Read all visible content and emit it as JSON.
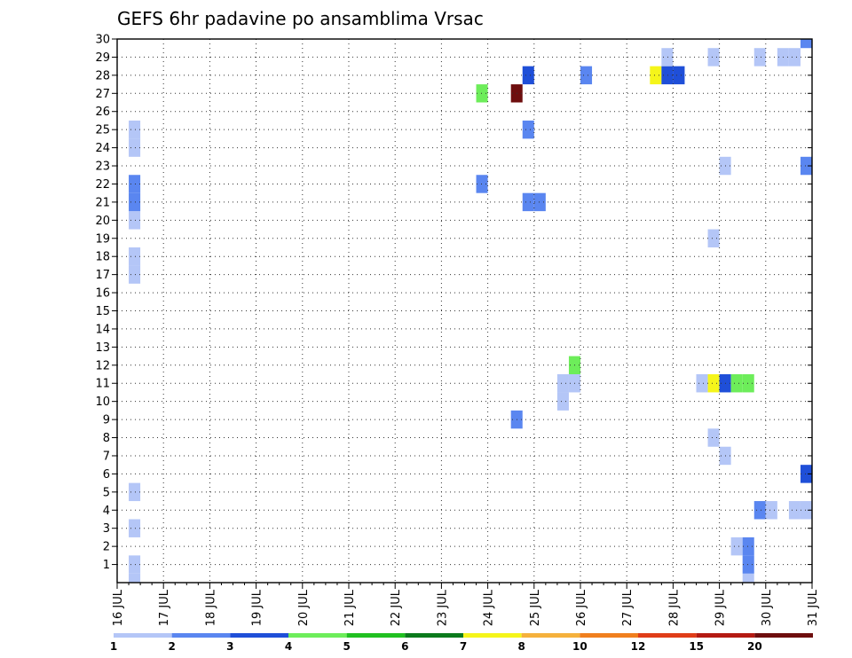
{
  "chart_data": {
    "type": "heatmap",
    "title": "GEFS 6hr padavine po ansamblima Vrsac",
    "y_ticks": [
      "1",
      "2",
      "3",
      "4",
      "5",
      "6",
      "7",
      "8",
      "9",
      "10",
      "11",
      "12",
      "13",
      "14",
      "15",
      "16",
      "17",
      "18",
      "19",
      "20",
      "21",
      "22",
      "23",
      "24",
      "25",
      "26",
      "27",
      "28",
      "29",
      "30"
    ],
    "x_ticks": [
      "16 JUL",
      "17 JUL",
      "18 JUL",
      "19 JUL",
      "20 JUL",
      "21 JUL",
      "22 JUL",
      "23 JUL",
      "24 JUL",
      "25 JUL",
      "26 JUL",
      "27 JUL",
      "28 JUL",
      "29 JUL",
      "30 JUL",
      "31 JUL"
    ],
    "x_range_days": [
      16,
      31
    ],
    "time_step_hours": 6,
    "y_range": [
      0,
      30
    ],
    "grid": true,
    "colorbar": {
      "labels": [
        "1",
        "2",
        "3",
        "4",
        "5",
        "6",
        "7",
        "8",
        "10",
        "12",
        "15",
        "20"
      ],
      "colors": [
        "#b4c6f7",
        "#5a86f0",
        "#1f4fd8",
        "#6ded5a",
        "#20c020",
        "#0a7a1c",
        "#f5f51a",
        "#f5b13c",
        "#f07f1e",
        "#e03d18",
        "#b41a12",
        "#6e0e0e"
      ]
    },
    "points": [
      {
        "day": 16.25,
        "member": 1,
        "c": 0
      },
      {
        "day": 16.25,
        "member": 0,
        "c": 0
      },
      {
        "day": 16.25,
        "member": 3,
        "c": 0
      },
      {
        "day": 16.25,
        "member": 5,
        "c": 0
      },
      {
        "day": 16.25,
        "member": 17,
        "c": 0
      },
      {
        "day": 16.25,
        "member": 18,
        "c": 0
      },
      {
        "day": 16.25,
        "member": 20,
        "c": 0
      },
      {
        "day": 16.25,
        "member": 21,
        "c": 1
      },
      {
        "day": 16.25,
        "member": 22,
        "c": 1
      },
      {
        "day": 16.25,
        "member": 24,
        "c": 0
      },
      {
        "day": 16.25,
        "member": 25,
        "c": 0
      },
      {
        "day": 23.75,
        "member": 22,
        "c": 1
      },
      {
        "day": 23.75,
        "member": 27,
        "c": 3
      },
      {
        "day": 24.5,
        "member": 9,
        "c": 1
      },
      {
        "day": 24.5,
        "member": 27,
        "c": 11
      },
      {
        "day": 24.75,
        "member": 21,
        "c": 1
      },
      {
        "day": 24.75,
        "member": 25,
        "c": 1
      },
      {
        "day": 24.75,
        "member": 28,
        "c": 2
      },
      {
        "day": 25.0,
        "member": 21,
        "c": 1
      },
      {
        "day": 25.5,
        "member": 10,
        "c": 0
      },
      {
        "day": 25.5,
        "member": 11,
        "c": 0
      },
      {
        "day": 25.75,
        "member": 11,
        "c": 0
      },
      {
        "day": 25.75,
        "member": 12,
        "c": 3
      },
      {
        "day": 26.0,
        "member": 28,
        "c": 1
      },
      {
        "day": 27.5,
        "member": 28,
        "c": 6
      },
      {
        "day": 27.75,
        "member": 28,
        "c": 2
      },
      {
        "day": 27.75,
        "member": 29,
        "c": 0
      },
      {
        "day": 28.0,
        "member": 28,
        "c": 2
      },
      {
        "day": 28.5,
        "member": 11,
        "c": 0
      },
      {
        "day": 28.75,
        "member": 8,
        "c": 0
      },
      {
        "day": 28.75,
        "member": 11,
        "c": 6
      },
      {
        "day": 28.75,
        "member": 19,
        "c": 0
      },
      {
        "day": 28.75,
        "member": 29,
        "c": 0
      },
      {
        "day": 29.0,
        "member": 7,
        "c": 0
      },
      {
        "day": 29.0,
        "member": 11,
        "c": 2
      },
      {
        "day": 29.0,
        "member": 23,
        "c": 0
      },
      {
        "day": 29.25,
        "member": 2,
        "c": 0
      },
      {
        "day": 29.25,
        "member": 11,
        "c": 3
      },
      {
        "day": 29.5,
        "member": 0,
        "c": 0
      },
      {
        "day": 29.5,
        "member": 1,
        "c": 1
      },
      {
        "day": 29.5,
        "member": 2,
        "c": 1
      },
      {
        "day": 29.5,
        "member": 11,
        "c": 3
      },
      {
        "day": 29.75,
        "member": 4,
        "c": 1
      },
      {
        "day": 29.75,
        "member": 29,
        "c": 0
      },
      {
        "day": 30.0,
        "member": 4,
        "c": 0
      },
      {
        "day": 30.25,
        "member": 29,
        "c": 0
      },
      {
        "day": 30.5,
        "member": 29,
        "c": 0
      },
      {
        "day": 30.5,
        "member": 4,
        "c": 0
      },
      {
        "day": 30.75,
        "member": 4,
        "c": 0
      },
      {
        "day": 30.75,
        "member": 6,
        "c": 2
      },
      {
        "day": 30.75,
        "member": 23,
        "c": 1
      },
      {
        "day": 30.75,
        "member": 30,
        "c": 1
      }
    ]
  }
}
